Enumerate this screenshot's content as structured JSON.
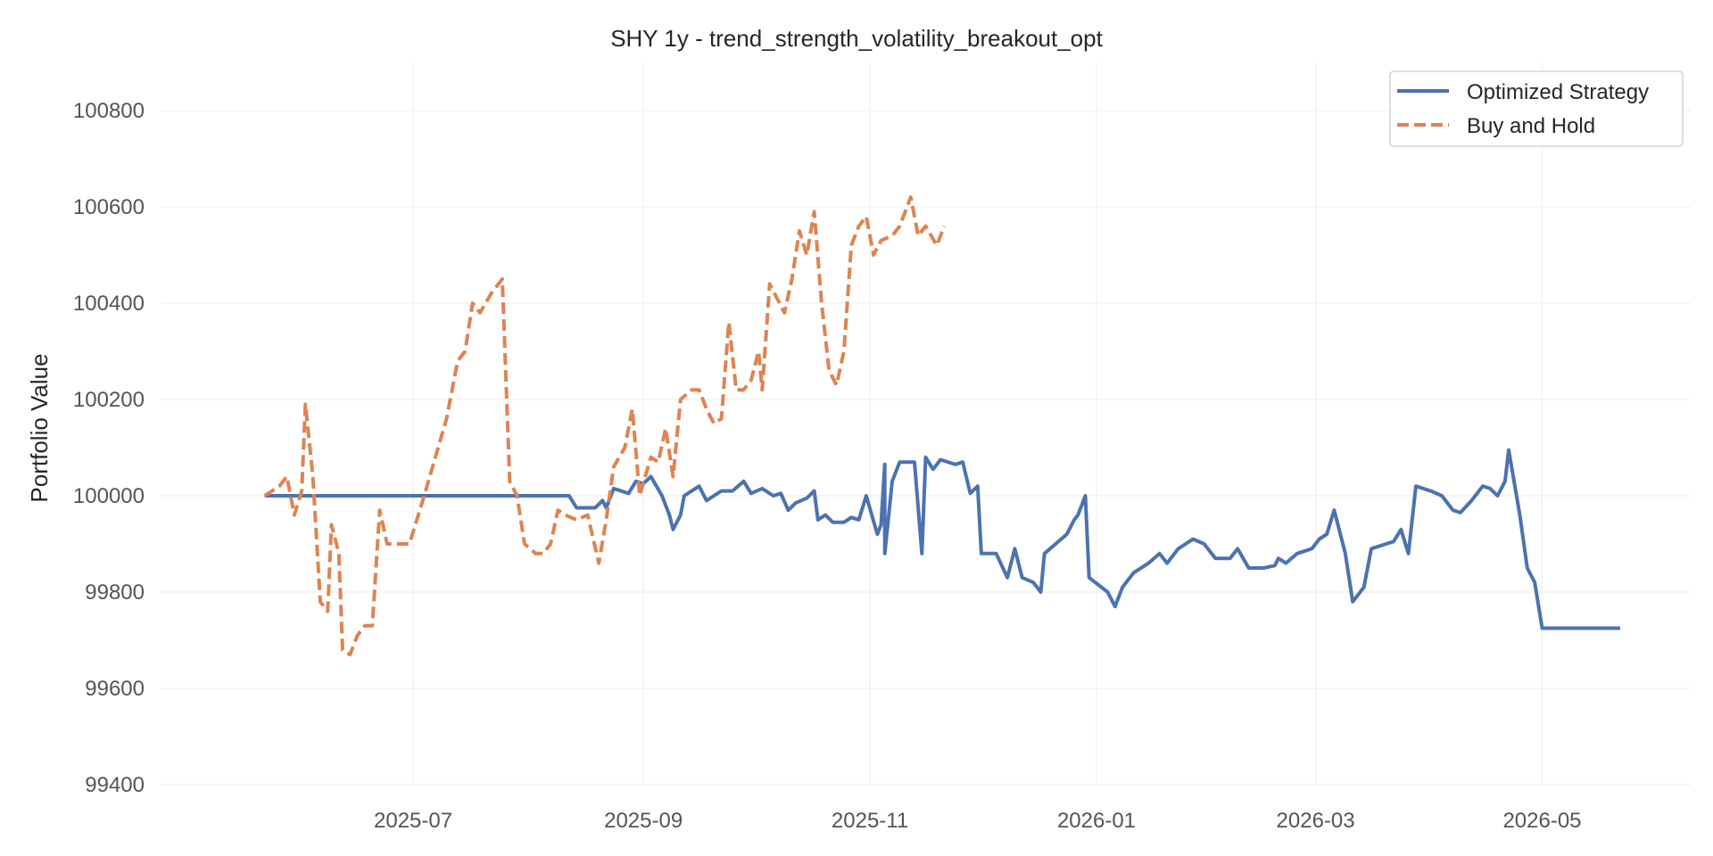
{
  "chart_data": {
    "type": "line",
    "title": "SHY 1y - trend_strength_volatility_breakout_opt",
    "xlabel": "",
    "ylabel": "Portfolio Value",
    "xlim": [
      "2025-04-24",
      "2026-06-10"
    ],
    "ylim": [
      99400,
      100900
    ],
    "x_ticks": [
      "2025-07",
      "2025-09",
      "2025-11",
      "2026-01",
      "2026-03",
      "2026-05"
    ],
    "y_ticks": [
      99400,
      99600,
      99800,
      100000,
      100200,
      100400,
      100600,
      100800
    ],
    "grid": true,
    "legend": "top-right",
    "series": [
      {
        "name": "Optimized Strategy",
        "color": "#4c72b0",
        "style": "solid",
        "points": [
          [
            "2025-05-22",
            100000
          ],
          [
            "2025-06-15",
            100000
          ],
          [
            "2025-07-15",
            100000
          ],
          [
            "2025-08-12",
            100000
          ],
          [
            "2025-08-14",
            99975
          ],
          [
            "2025-08-19",
            99975
          ],
          [
            "2025-08-21",
            99990
          ],
          [
            "2025-08-22",
            99975
          ],
          [
            "2025-08-24",
            100015
          ],
          [
            "2025-08-28",
            100005
          ],
          [
            "2025-08-30",
            100030
          ],
          [
            "2025-09-01",
            100025
          ],
          [
            "2025-09-03",
            100040
          ],
          [
            "2025-09-06",
            100000
          ],
          [
            "2025-09-08",
            99960
          ],
          [
            "2025-09-09",
            99930
          ],
          [
            "2025-09-11",
            99960
          ],
          [
            "2025-09-12",
            100000
          ],
          [
            "2025-09-16",
            100020
          ],
          [
            "2025-09-18",
            99990
          ],
          [
            "2025-09-20",
            100000
          ],
          [
            "2025-09-22",
            100010
          ],
          [
            "2025-09-25",
            100010
          ],
          [
            "2025-09-28",
            100030
          ],
          [
            "2025-09-30",
            100005
          ],
          [
            "2025-10-03",
            100015
          ],
          [
            "2025-10-06",
            100000
          ],
          [
            "2025-10-08",
            100005
          ],
          [
            "2025-10-10",
            99970
          ],
          [
            "2025-10-12",
            99985
          ],
          [
            "2025-10-15",
            99995
          ],
          [
            "2025-10-17",
            100010
          ],
          [
            "2025-10-18",
            99950
          ],
          [
            "2025-10-20",
            99960
          ],
          [
            "2025-10-22",
            99945
          ],
          [
            "2025-10-25",
            99945
          ],
          [
            "2025-10-27",
            99955
          ],
          [
            "2025-10-29",
            99950
          ],
          [
            "2025-10-31",
            100000
          ],
          [
            "2025-11-05",
            100065
          ],
          [
            "2025-11-07",
            100030
          ],
          [
            "2025-11-09",
            100070
          ],
          [
            "2025-11-13",
            100070
          ],
          [
            "2025-11-16",
            100080
          ],
          [
            "2025-11-18",
            100055
          ],
          [
            "2025-11-20",
            100075
          ],
          [
            "2025-11-24",
            100065
          ],
          [
            "2025-11-26",
            100070
          ],
          [
            "2025-11-28",
            100005
          ],
          [
            "2025-11-30",
            100020
          ],
          [
            "2025-11-03",
            99920
          ],
          [
            "2025-11-04",
            99940
          ],
          [
            "2025-11-05",
            99880
          ],
          [
            "2025-11-15",
            99880
          ],
          [
            "2025-12-01",
            99880
          ],
          [
            "2025-12-05",
            99880
          ],
          [
            "2025-12-08",
            99830
          ],
          [
            "2025-12-10",
            99890
          ],
          [
            "2025-12-12",
            99830
          ],
          [
            "2025-12-15",
            99820
          ],
          [
            "2025-12-17",
            99800
          ],
          [
            "2025-12-18",
            99880
          ],
          [
            "2025-12-21",
            99900
          ],
          [
            "2025-12-24",
            99920
          ],
          [
            "2025-12-26",
            99950
          ],
          [
            "2025-12-27",
            99960
          ],
          [
            "2025-12-29",
            100000
          ],
          [
            "2025-12-30",
            99830
          ],
          [
            "2026-01-04",
            99800
          ],
          [
            "2026-01-06",
            99770
          ],
          [
            "2026-01-08",
            99810
          ],
          [
            "2026-01-11",
            99840
          ],
          [
            "2026-01-15",
            99860
          ],
          [
            "2026-01-18",
            99880
          ],
          [
            "2026-01-20",
            99860
          ],
          [
            "2026-01-23",
            99890
          ],
          [
            "2026-01-27",
            99910
          ],
          [
            "2026-01-30",
            99900
          ],
          [
            "2026-02-02",
            99870
          ],
          [
            "2026-02-06",
            99870
          ],
          [
            "2026-02-08",
            99890
          ],
          [
            "2026-02-11",
            99850
          ],
          [
            "2026-02-15",
            99850
          ],
          [
            "2026-02-18",
            99855
          ],
          [
            "2026-02-19",
            99870
          ],
          [
            "2026-02-21",
            99860
          ],
          [
            "2026-02-24",
            99880
          ],
          [
            "2026-02-28",
            99890
          ],
          [
            "2026-03-02",
            99910
          ],
          [
            "2026-03-04",
            99920
          ],
          [
            "2026-03-06",
            99970
          ],
          [
            "2026-03-09",
            99880
          ],
          [
            "2026-03-11",
            99780
          ],
          [
            "2026-03-14",
            99810
          ],
          [
            "2026-03-16",
            99890
          ],
          [
            "2026-03-20",
            99900
          ],
          [
            "2026-03-22",
            99905
          ],
          [
            "2026-03-24",
            99930
          ],
          [
            "2026-03-26",
            99880
          ],
          [
            "2026-03-28",
            100020
          ],
          [
            "2026-04-01",
            100010
          ],
          [
            "2026-04-04",
            100000
          ],
          [
            "2026-04-07",
            99970
          ],
          [
            "2026-04-09",
            99965
          ],
          [
            "2026-04-12",
            99990
          ],
          [
            "2026-04-15",
            100020
          ],
          [
            "2026-04-17",
            100015
          ],
          [
            "2026-04-19",
            100000
          ],
          [
            "2026-04-21",
            100030
          ],
          [
            "2026-04-22",
            100095
          ],
          [
            "2026-04-25",
            99960
          ],
          [
            "2026-04-27",
            99850
          ],
          [
            "2026-04-29",
            99820
          ],
          [
            "2026-05-01",
            99725
          ],
          [
            "2026-05-10",
            99725
          ],
          [
            "2026-05-22",
            99725
          ]
        ]
      },
      {
        "name": "Buy and Hold",
        "color": "#dd8452",
        "style": "dashed",
        "points": [
          [
            "2025-05-22",
            100000
          ],
          [
            "2025-05-26",
            100020
          ],
          [
            "2025-05-28",
            100040
          ],
          [
            "2025-05-30",
            99960
          ],
          [
            "2025-06-01",
            100010
          ],
          [
            "2025-06-02",
            100190
          ],
          [
            "2025-06-04",
            100040
          ],
          [
            "2025-06-06",
            99780
          ],
          [
            "2025-06-08",
            99760
          ],
          [
            "2025-06-09",
            99940
          ],
          [
            "2025-06-11",
            99880
          ],
          [
            "2025-06-12",
            99680
          ],
          [
            "2025-06-14",
            99670
          ],
          [
            "2025-06-16",
            99710
          ],
          [
            "2025-06-18",
            99730
          ],
          [
            "2025-06-20",
            99730
          ],
          [
            "2025-06-22",
            99970
          ],
          [
            "2025-06-24",
            99900
          ],
          [
            "2025-06-27",
            99900
          ],
          [
            "2025-06-30",
            99900
          ],
          [
            "2025-07-04",
            100000
          ],
          [
            "2025-07-07",
            100080
          ],
          [
            "2025-07-10",
            100160
          ],
          [
            "2025-07-13",
            100280
          ],
          [
            "2025-07-15",
            100300
          ],
          [
            "2025-07-17",
            100400
          ],
          [
            "2025-07-19",
            100380
          ],
          [
            "2025-07-22",
            100420
          ],
          [
            "2025-07-25",
            100450
          ],
          [
            "2025-07-27",
            100030
          ],
          [
            "2025-07-29",
            100000
          ],
          [
            "2025-07-31",
            99900
          ],
          [
            "2025-08-03",
            99880
          ],
          [
            "2025-08-05",
            99880
          ],
          [
            "2025-08-07",
            99900
          ],
          [
            "2025-08-09",
            99970
          ],
          [
            "2025-08-11",
            99960
          ],
          [
            "2025-08-14",
            99950
          ],
          [
            "2025-08-17",
            99960
          ],
          [
            "2025-08-20",
            99860
          ],
          [
            "2025-08-22",
            99950
          ],
          [
            "2025-08-24",
            100060
          ],
          [
            "2025-08-27",
            100100
          ],
          [
            "2025-08-29",
            100180
          ],
          [
            "2025-08-31",
            100000
          ],
          [
            "2025-09-03",
            100080
          ],
          [
            "2025-09-05",
            100070
          ],
          [
            "2025-09-07",
            100140
          ],
          [
            "2025-09-09",
            100040
          ],
          [
            "2025-09-11",
            100200
          ],
          [
            "2025-09-14",
            100220
          ],
          [
            "2025-09-16",
            100220
          ],
          [
            "2025-09-18",
            100180
          ],
          [
            "2025-09-20",
            100150
          ],
          [
            "2025-09-22",
            100160
          ],
          [
            "2025-09-24",
            100360
          ],
          [
            "2025-09-26",
            100220
          ],
          [
            "2025-09-28",
            100220
          ],
          [
            "2025-09-30",
            100240
          ],
          [
            "2025-10-02",
            100300
          ],
          [
            "2025-10-03",
            100220
          ],
          [
            "2025-10-05",
            100440
          ],
          [
            "2025-10-07",
            100410
          ],
          [
            "2025-10-09",
            100380
          ],
          [
            "2025-10-11",
            100450
          ],
          [
            "2025-10-13",
            100550
          ],
          [
            "2025-10-15",
            100500
          ],
          [
            "2025-10-17",
            100590
          ],
          [
            "2025-10-19",
            100400
          ],
          [
            "2025-10-21",
            100260
          ],
          [
            "2025-10-23",
            100230
          ],
          [
            "2025-10-25",
            100300
          ],
          [
            "2025-10-27",
            100520
          ],
          [
            "2025-10-29",
            100560
          ],
          [
            "2025-10-31",
            100580
          ],
          [
            "2025-11-02",
            100500
          ],
          [
            "2025-11-04",
            100530
          ],
          [
            "2025-11-07",
            100540
          ],
          [
            "2025-11-09",
            100560
          ],
          [
            "2025-11-12",
            100620
          ],
          [
            "2025-11-14",
            100540
          ],
          [
            "2025-11-16",
            100560
          ],
          [
            "2025-11-19",
            100520
          ],
          [
            "2025-11-21",
            100560
          ]
        ]
      }
    ]
  }
}
